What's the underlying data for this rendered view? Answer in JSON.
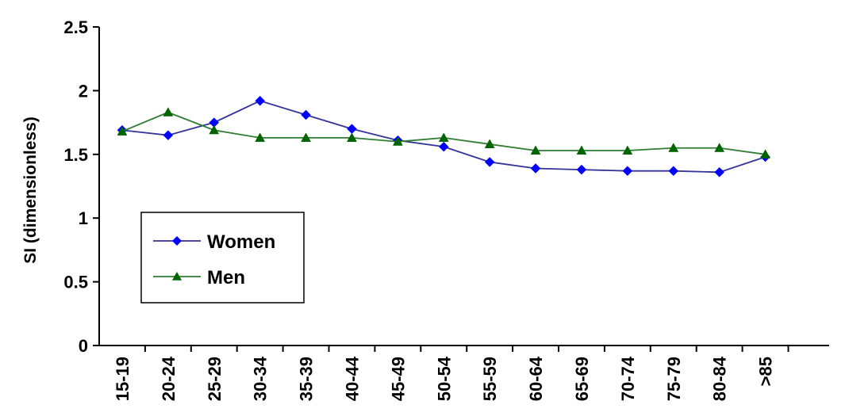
{
  "chart_data": {
    "type": "line",
    "title": "",
    "xlabel": "",
    "ylabel": "SI (dimensionless)",
    "categories": [
      "15-19",
      "20-24",
      "25-29",
      "30-34",
      "35-39",
      "40-44",
      "45-49",
      "50-54",
      "55-59",
      "60-64",
      "65-69",
      "70-74",
      "75-79",
      "80-84",
      ">85"
    ],
    "ylim": [
      0,
      2.5
    ],
    "yticks": [
      "0",
      "0.5",
      "1",
      "1.5",
      "2",
      "2.5"
    ],
    "grid": false,
    "legend_position": "bottom-left",
    "series": [
      {
        "name": "Women",
        "color": "#0000ff",
        "line_color": "#333399",
        "marker": "diamond",
        "values": [
          1.69,
          1.65,
          1.75,
          1.92,
          1.81,
          1.7,
          1.61,
          1.56,
          1.44,
          1.39,
          1.38,
          1.37,
          1.37,
          1.36,
          1.48
        ]
      },
      {
        "name": "Men",
        "color": "#006400",
        "line_color": "#2e7d32",
        "marker": "triangle",
        "values": [
          1.68,
          1.83,
          1.69,
          1.63,
          1.63,
          1.63,
          1.6,
          1.63,
          1.58,
          1.53,
          1.53,
          1.53,
          1.55,
          1.55,
          1.5
        ]
      }
    ]
  }
}
